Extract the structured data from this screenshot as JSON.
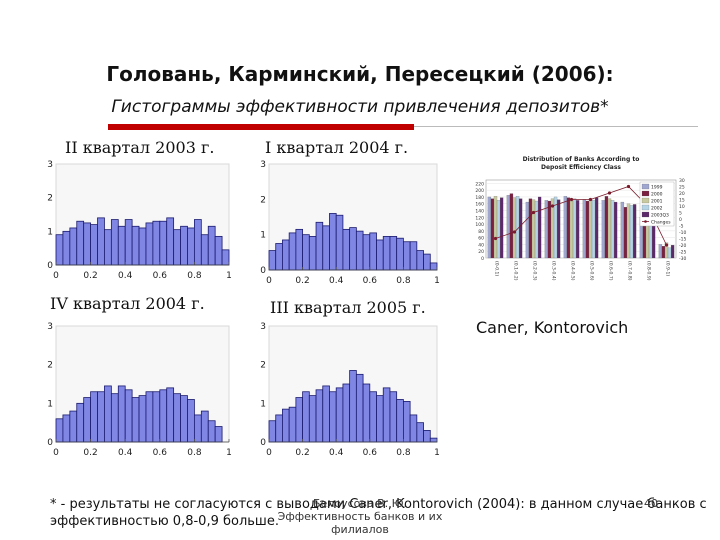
{
  "slide": {
    "title": "Головань, Карминский, Пересецкий (2006):",
    "subtitle": "Гистограммы эффективности привлечения депозитов*",
    "caner_label": "Caner, Kontorovich",
    "footnote": "* - результаты не согласуются с выводами Caner, Kontorovich (2004): в данном случае банков с эффективностью 0,8-0,9 больше.",
    "footer_author": "Белоусова В. Ю. Эффективность банков и их филиалов",
    "page_number": "40"
  },
  "chart_data": [
    {
      "type": "bar",
      "title": "II квартал 2003 г.",
      "x": [
        0.02,
        0.06,
        0.1,
        0.14,
        0.18,
        0.22,
        0.26,
        0.3,
        0.34,
        0.38,
        0.42,
        0.46,
        0.5,
        0.54,
        0.58,
        0.62,
        0.66,
        0.7,
        0.74,
        0.78,
        0.82,
        0.86,
        0.9,
        0.94,
        0.98
      ],
      "values": [
        0.9,
        1.0,
        1.1,
        1.3,
        1.25,
        1.2,
        1.4,
        1.05,
        1.35,
        1.15,
        1.35,
        1.15,
        1.1,
        1.25,
        1.3,
        1.3,
        1.4,
        1.05,
        1.15,
        1.1,
        1.35,
        0.9,
        1.15,
        0.85,
        0.45
      ],
      "xticks": [
        "0",
        "0.2",
        "0.4",
        "0.6",
        "0.8",
        "1"
      ],
      "yticks": [
        "0",
        "1",
        "2",
        "3"
      ],
      "xlim": [
        0,
        1
      ],
      "ylim": [
        0,
        3
      ]
    },
    {
      "type": "bar",
      "title": "I квартал 2004 г.",
      "x": [
        0.02,
        0.06,
        0.1,
        0.14,
        0.18,
        0.22,
        0.26,
        0.3,
        0.34,
        0.38,
        0.42,
        0.46,
        0.5,
        0.54,
        0.58,
        0.62,
        0.66,
        0.7,
        0.74,
        0.78,
        0.82,
        0.86,
        0.9,
        0.94,
        0.98
      ],
      "values": [
        0.55,
        0.75,
        0.85,
        1.05,
        1.15,
        1.0,
        0.95,
        1.35,
        1.25,
        1.6,
        1.55,
        1.15,
        1.2,
        1.1,
        1.0,
        1.05,
        0.85,
        0.95,
        0.95,
        0.9,
        0.8,
        0.8,
        0.55,
        0.45,
        0.2
      ],
      "xticks": [
        "0",
        "0.2",
        "0.4",
        "0.6",
        "0.8",
        "1"
      ],
      "yticks": [
        "0",
        "1",
        "2",
        "3"
      ],
      "xlim": [
        0,
        1
      ],
      "ylim": [
        0,
        3
      ]
    },
    {
      "type": "bar",
      "title": "IV квартал 2004 г.",
      "x": [
        0.02,
        0.06,
        0.1,
        0.14,
        0.18,
        0.22,
        0.26,
        0.3,
        0.34,
        0.38,
        0.42,
        0.46,
        0.5,
        0.54,
        0.58,
        0.62,
        0.66,
        0.7,
        0.74,
        0.78,
        0.82,
        0.86,
        0.9,
        0.94,
        0.98
      ],
      "values": [
        0.6,
        0.7,
        0.8,
        1.0,
        1.15,
        1.3,
        1.3,
        1.45,
        1.25,
        1.45,
        1.35,
        1.15,
        1.2,
        1.3,
        1.3,
        1.35,
        1.4,
        1.25,
        1.2,
        1.1,
        0.7,
        0.8,
        0.55,
        0.4,
        0.0
      ],
      "xticks": [
        "0",
        "0.2",
        "0.4",
        "0.6",
        "0.8",
        "1"
      ],
      "yticks": [
        "0",
        "1",
        "2",
        "3"
      ],
      "xlim": [
        0,
        1
      ],
      "ylim": [
        0,
        3
      ]
    },
    {
      "type": "bar",
      "title": "III квартал 2005 г.",
      "x": [
        0.02,
        0.06,
        0.1,
        0.14,
        0.18,
        0.22,
        0.26,
        0.3,
        0.34,
        0.38,
        0.42,
        0.46,
        0.5,
        0.54,
        0.58,
        0.62,
        0.66,
        0.7,
        0.74,
        0.78,
        0.82,
        0.86,
        0.9,
        0.94,
        0.98
      ],
      "values": [
        0.55,
        0.7,
        0.85,
        0.9,
        1.15,
        1.3,
        1.2,
        1.35,
        1.45,
        1.3,
        1.4,
        1.5,
        1.85,
        1.75,
        1.5,
        1.3,
        1.2,
        1.4,
        1.3,
        1.1,
        1.05,
        0.7,
        0.5,
        0.3,
        0.1
      ],
      "xticks": [
        "0",
        "0.2",
        "0.4",
        "0.6",
        "0.8",
        "1"
      ],
      "yticks": [
        "0",
        "1",
        "2",
        "3"
      ],
      "xlim": [
        0,
        1
      ],
      "ylim": [
        0,
        3
      ]
    },
    {
      "type": "bar",
      "title": "Distribution of Banks According to Deposit Efficiency Class",
      "categories": [
        "(0-0.1)",
        "(0.1-0.2)",
        "(0.2-0.3)",
        "(0.3-0.4)",
        "(0.4-0.5)",
        "(0.5-0.6)",
        "(0.6-0.7)",
        "(0.7-0.8)",
        "(0.8-0.9)",
        "(0.9-1)"
      ],
      "series": [
        {
          "name": "1999",
          "values": [
            180,
            185,
            165,
            170,
            182,
            172,
            170,
            165,
            120,
            40
          ]
        },
        {
          "name": "2000",
          "values": [
            175,
            190,
            175,
            168,
            178,
            168,
            182,
            150,
            115,
            35
          ]
        },
        {
          "name": "2001",
          "values": [
            182,
            178,
            172,
            175,
            168,
            175,
            175,
            160,
            110,
            45
          ]
        },
        {
          "name": "2002",
          "values": [
            170,
            182,
            168,
            180,
            175,
            170,
            170,
            155,
            105,
            30
          ]
        },
        {
          "name": "2003Q3",
          "values": [
            178,
            175,
            180,
            172,
            170,
            178,
            165,
            158,
            100,
            38
          ]
        },
        {
          "name": "Changes",
          "values": [
            -15,
            -10,
            5,
            10,
            15,
            15,
            20,
            25,
            10,
            -20
          ]
        }
      ],
      "yticks_left": [
        "0",
        "20",
        "40",
        "60",
        "80",
        "100",
        "120",
        "140",
        "160",
        "180",
        "200",
        "220"
      ],
      "yticks_right": [
        "-30",
        "-25",
        "-20",
        "-15",
        "-10",
        "-5",
        "0",
        "5",
        "10",
        "15",
        "20",
        "25",
        "30"
      ],
      "ylim": [
        0,
        230
      ],
      "y2lim": [
        -30,
        30
      ],
      "colors": [
        "#9fa6cf",
        "#7b2040",
        "#c9c9a0",
        "#b5d4e6",
        "#5c2a6b"
      ],
      "change_color": "#7a1a2a"
    }
  ]
}
